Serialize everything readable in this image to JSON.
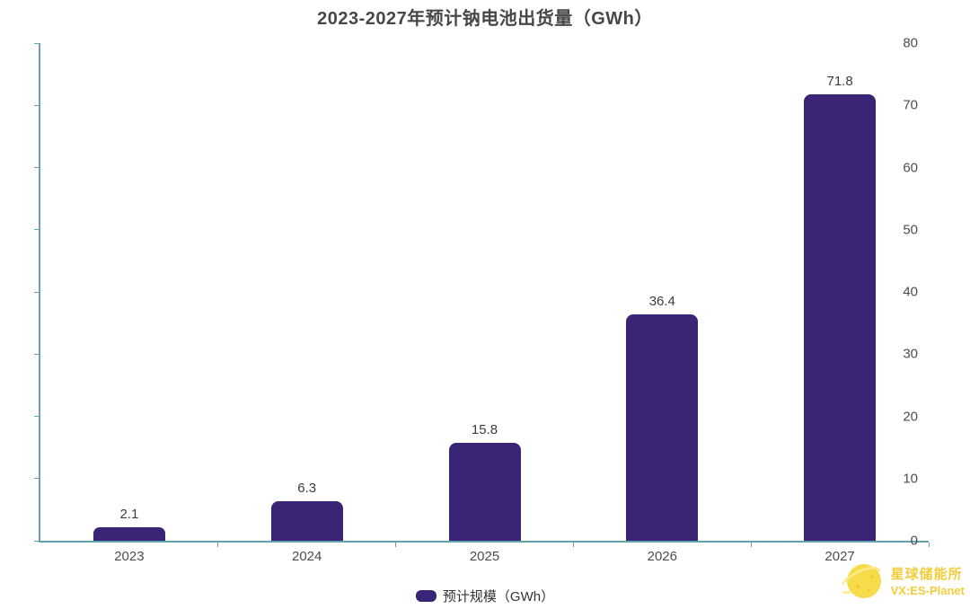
{
  "chart_data": {
    "type": "bar",
    "title": "2023-2027年预计钠电池出货量（GWh）",
    "categories": [
      "2023",
      "2024",
      "2025",
      "2026",
      "2027"
    ],
    "values": [
      2.1,
      6.3,
      15.8,
      36.4,
      71.8
    ],
    "series_name": "预计规模（GWh）",
    "xlabel": "",
    "ylabel": "",
    "ylim": [
      0,
      80
    ],
    "ytick_step": 10,
    "ytick_labels": [
      "0",
      "10",
      "20",
      "30",
      "40",
      "50",
      "60",
      "70",
      "80"
    ],
    "grid": false,
    "legend_position": "bottom",
    "bar_color": "#3a2475",
    "axis_color": "#62a3ae",
    "value_label_color": "#3c3c3c",
    "tick_label_color": "#4c4c4c"
  },
  "legend": {
    "label": "预计规模（GWh）"
  },
  "watermark": {
    "brand": "星球储能所",
    "handle": "VX:ES-Planet",
    "text_color": "#f2cd3a",
    "logo_color": "#f6dc4b"
  }
}
